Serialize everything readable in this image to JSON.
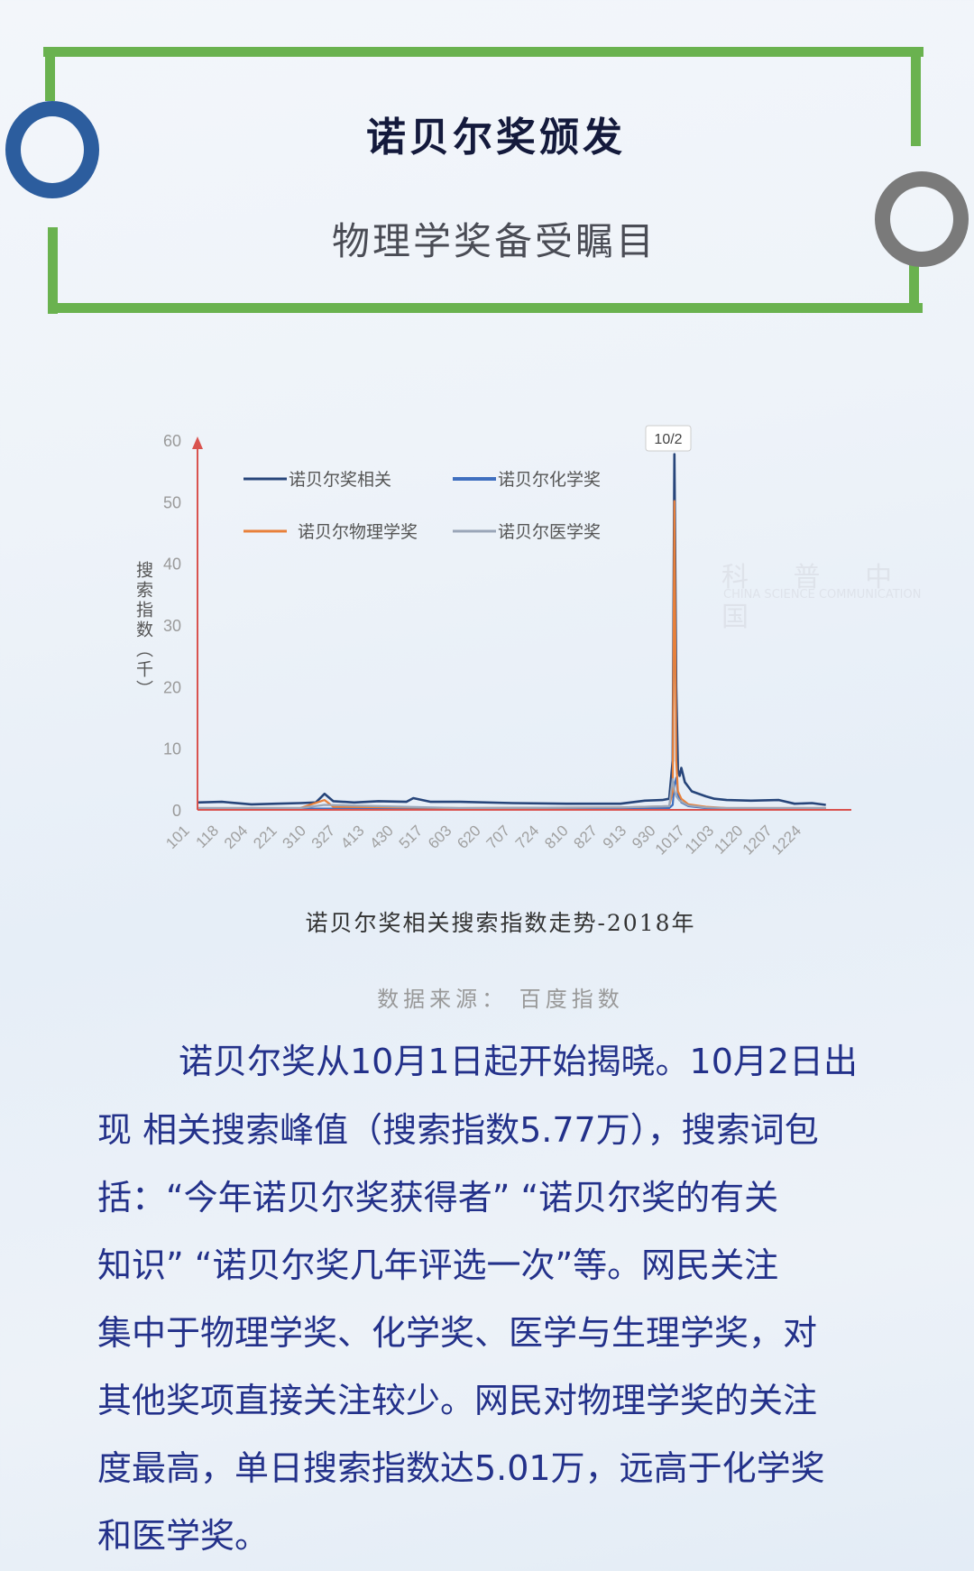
{
  "header": {
    "title": "诺贝尔奖颁发",
    "subtitle": "物理学奖备受瞩目",
    "colors": {
      "frame": "#6ab24f",
      "ring_left": "#2c5d9e",
      "ring_right": "#7a7a7a"
    }
  },
  "watermark": {
    "text": "科 普 中 国",
    "subtext": "CHINA SCIENCE COMMUNICATION"
  },
  "chart_data": {
    "type": "line",
    "title": "诺贝尔奖相关搜索指数走势-2018年",
    "source": "数据来源： 百度指数",
    "ylabel": "搜索指数（千）",
    "xlabel": "",
    "ylim": [
      0,
      60
    ],
    "yticks": [
      "0",
      "10",
      "20",
      "30",
      "40",
      "50",
      "60"
    ],
    "xticks": [
      "101",
      "118",
      "204",
      "221",
      "310",
      "327",
      "413",
      "430",
      "517",
      "603",
      "620",
      "707",
      "724",
      "810",
      "827",
      "913",
      "930",
      "1017",
      "1103",
      "1120",
      "1207",
      "1224"
    ],
    "annotation": "10/2",
    "legend_position": "top-left",
    "grid": false,
    "series": [
      {
        "name": "诺贝尔奖相关",
        "color": "#27457a",
        "x": [
          "0101",
          "0115",
          "0201",
          "0215",
          "0301",
          "0310",
          "0315",
          "0320",
          "0401",
          "0415",
          "0501",
          "0505",
          "0515",
          "0601",
          "0701",
          "0801",
          "0901",
          "0915",
          "0925",
          "0929",
          "1001",
          "1002",
          "1003",
          "1004",
          "1005",
          "1006",
          "1008",
          "1012",
          "1020",
          "1025",
          "1101",
          "1115",
          "1201",
          "1210",
          "1220",
          "1228"
        ],
        "y": [
          1.2,
          1.3,
          0.9,
          1.0,
          1.1,
          1.2,
          2.6,
          1.4,
          1.2,
          1.4,
          1.3,
          1.9,
          1.3,
          1.3,
          1.1,
          1.0,
          1.0,
          1.5,
          1.6,
          1.8,
          8.0,
          57.7,
          20.0,
          6.5,
          5.5,
          6.8,
          4.5,
          3.0,
          2.2,
          1.8,
          1.6,
          1.5,
          1.6,
          1.0,
          1.1,
          0.8
        ]
      },
      {
        "name": "诺贝尔化学奖",
        "color": "#3f6fbf",
        "x": [
          "0101",
          "0301",
          "0601",
          "0901",
          "0929",
          "1001",
          "1002",
          "1003",
          "1004",
          "1006",
          "1010",
          "1020",
          "1101",
          "1228"
        ],
        "y": [
          0.2,
          0.2,
          0.2,
          0.2,
          0.3,
          0.8,
          4.0,
          5.2,
          2.5,
          1.2,
          0.6,
          0.3,
          0.2,
          0.2
        ]
      },
      {
        "name": "诺贝尔物理学奖",
        "color": "#e8803a",
        "x": [
          "0101",
          "0301",
          "0315",
          "0320",
          "0501",
          "0601",
          "0901",
          "0929",
          "1001",
          "1002",
          "1003",
          "1004",
          "1006",
          "1010",
          "1020",
          "1101",
          "1228"
        ],
        "y": [
          0.3,
          0.3,
          1.6,
          0.5,
          0.4,
          0.3,
          0.4,
          0.6,
          3.0,
          50.1,
          8.0,
          3.0,
          1.8,
          0.9,
          0.5,
          0.3,
          0.3
        ]
      },
      {
        "name": "诺贝尔医学奖",
        "color": "#9aa6b8",
        "x": [
          "0101",
          "0301",
          "0315",
          "0601",
          "0901",
          "0929",
          "1001",
          "1002",
          "1003",
          "1005",
          "1010",
          "1020",
          "1101",
          "1228"
        ],
        "y": [
          0.3,
          0.3,
          0.8,
          0.3,
          0.4,
          0.6,
          5.0,
          3.2,
          2.2,
          1.5,
          0.7,
          0.4,
          0.3,
          0.3
        ]
      }
    ]
  },
  "body": {
    "lines": [
      "诺贝尔奖从10月1日起开始揭晓。10月2日出",
      "现 相关搜索峰值（搜索指数5.77万），搜索词包",
      "括：“今年诺贝尔奖获得者” “诺贝尔奖的有关",
      "知识” “诺贝尔奖几年评选一次”等。网民关注",
      "集中于物理学奖、化学奖、医学与生理学奖，对",
      "其他奖项直接关注较少。网民对物理学奖的关注",
      "度最高，单日搜索指数达5.01万，远高于化学奖",
      "和医学奖。"
    ]
  }
}
